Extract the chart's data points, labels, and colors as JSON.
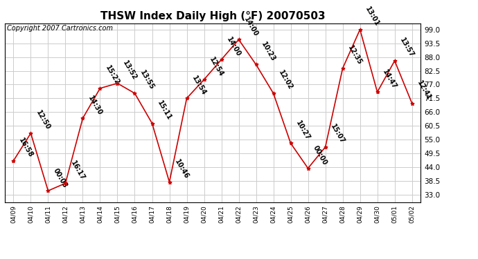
{
  "title": "THSW Index Daily High (°F) 20070503",
  "copyright": "Copyright 2007 Cartronics.com",
  "dates": [
    "04/09",
    "04/10",
    "04/11",
    "04/12",
    "04/13",
    "04/14",
    "04/15",
    "04/16",
    "04/17",
    "04/18",
    "04/19",
    "04/20",
    "04/21",
    "04/22",
    "04/23",
    "04/24",
    "04/25",
    "04/26",
    "04/27",
    "04/28",
    "04/29",
    "04/30",
    "05/01",
    "05/02"
  ],
  "values": [
    46.5,
    57.5,
    34.5,
    37.5,
    63.5,
    75.5,
    77.5,
    73.5,
    61.5,
    38.0,
    71.5,
    79.0,
    87.0,
    95.0,
    85.0,
    73.5,
    53.5,
    43.5,
    52.0,
    83.5,
    99.0,
    74.0,
    86.5,
    69.5
  ],
  "time_labels": [
    "16:58",
    "12:50",
    "00:03",
    "16:17",
    "14:30",
    "15:22",
    "13:52",
    "13:55",
    "15:11",
    "10:46",
    "13:54",
    "12:54",
    "14:00",
    "14:00",
    "10:23",
    "12:02",
    "10:27",
    "00:00",
    "15:07",
    "12:35",
    "13:01",
    "14:47",
    "13:57",
    "12:41"
  ],
  "yticks": [
    33.0,
    38.5,
    44.0,
    49.5,
    55.0,
    60.5,
    66.0,
    71.5,
    77.0,
    82.5,
    88.0,
    93.5,
    99.0
  ],
  "ymin": 30.0,
  "ymax": 101.5,
  "line_color": "#cc0000",
  "marker_color": "#cc0000",
  "bg_color": "#ffffff",
  "grid_color": "#cccccc",
  "title_fontsize": 11,
  "copyright_fontsize": 7,
  "label_fontsize": 7
}
